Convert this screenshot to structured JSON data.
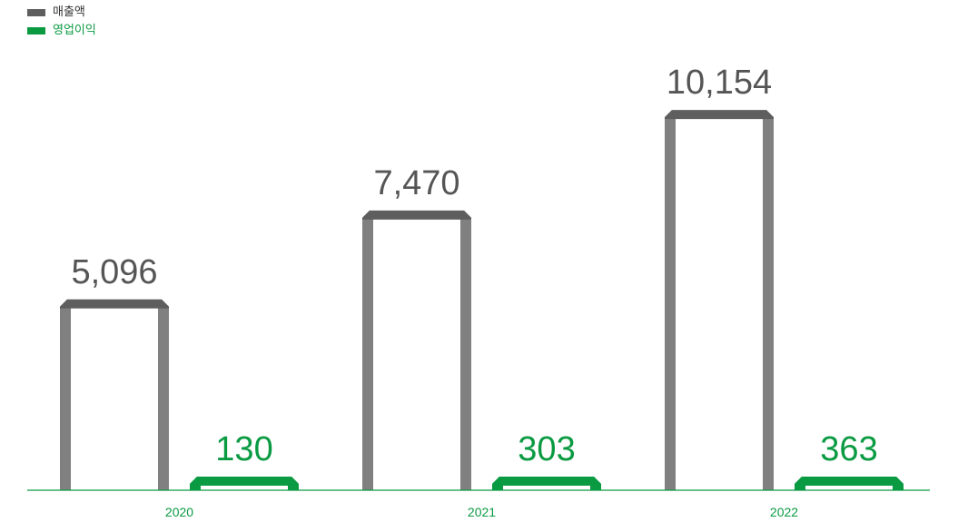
{
  "chart_data": {
    "type": "bar",
    "categories": [
      "2020",
      "2021",
      "2022"
    ],
    "series": [
      {
        "name": "매출액",
        "values": [
          5096,
          7470,
          10154
        ],
        "color": "#808080",
        "top_color": "#5e5e5e",
        "label_color": "#555555"
      },
      {
        "name": "영업이익",
        "values": [
          130,
          303,
          363
        ],
        "color": "#0a9a42",
        "top_color": "#0a9a42",
        "label_color": "#0a9a42"
      }
    ],
    "data_labels": [
      [
        "5,096",
        "7,470",
        "10,154"
      ],
      [
        "130",
        "303",
        "363"
      ]
    ],
    "axis_color": "#0a9a42",
    "legend_position": "top-left",
    "grid": false
  }
}
